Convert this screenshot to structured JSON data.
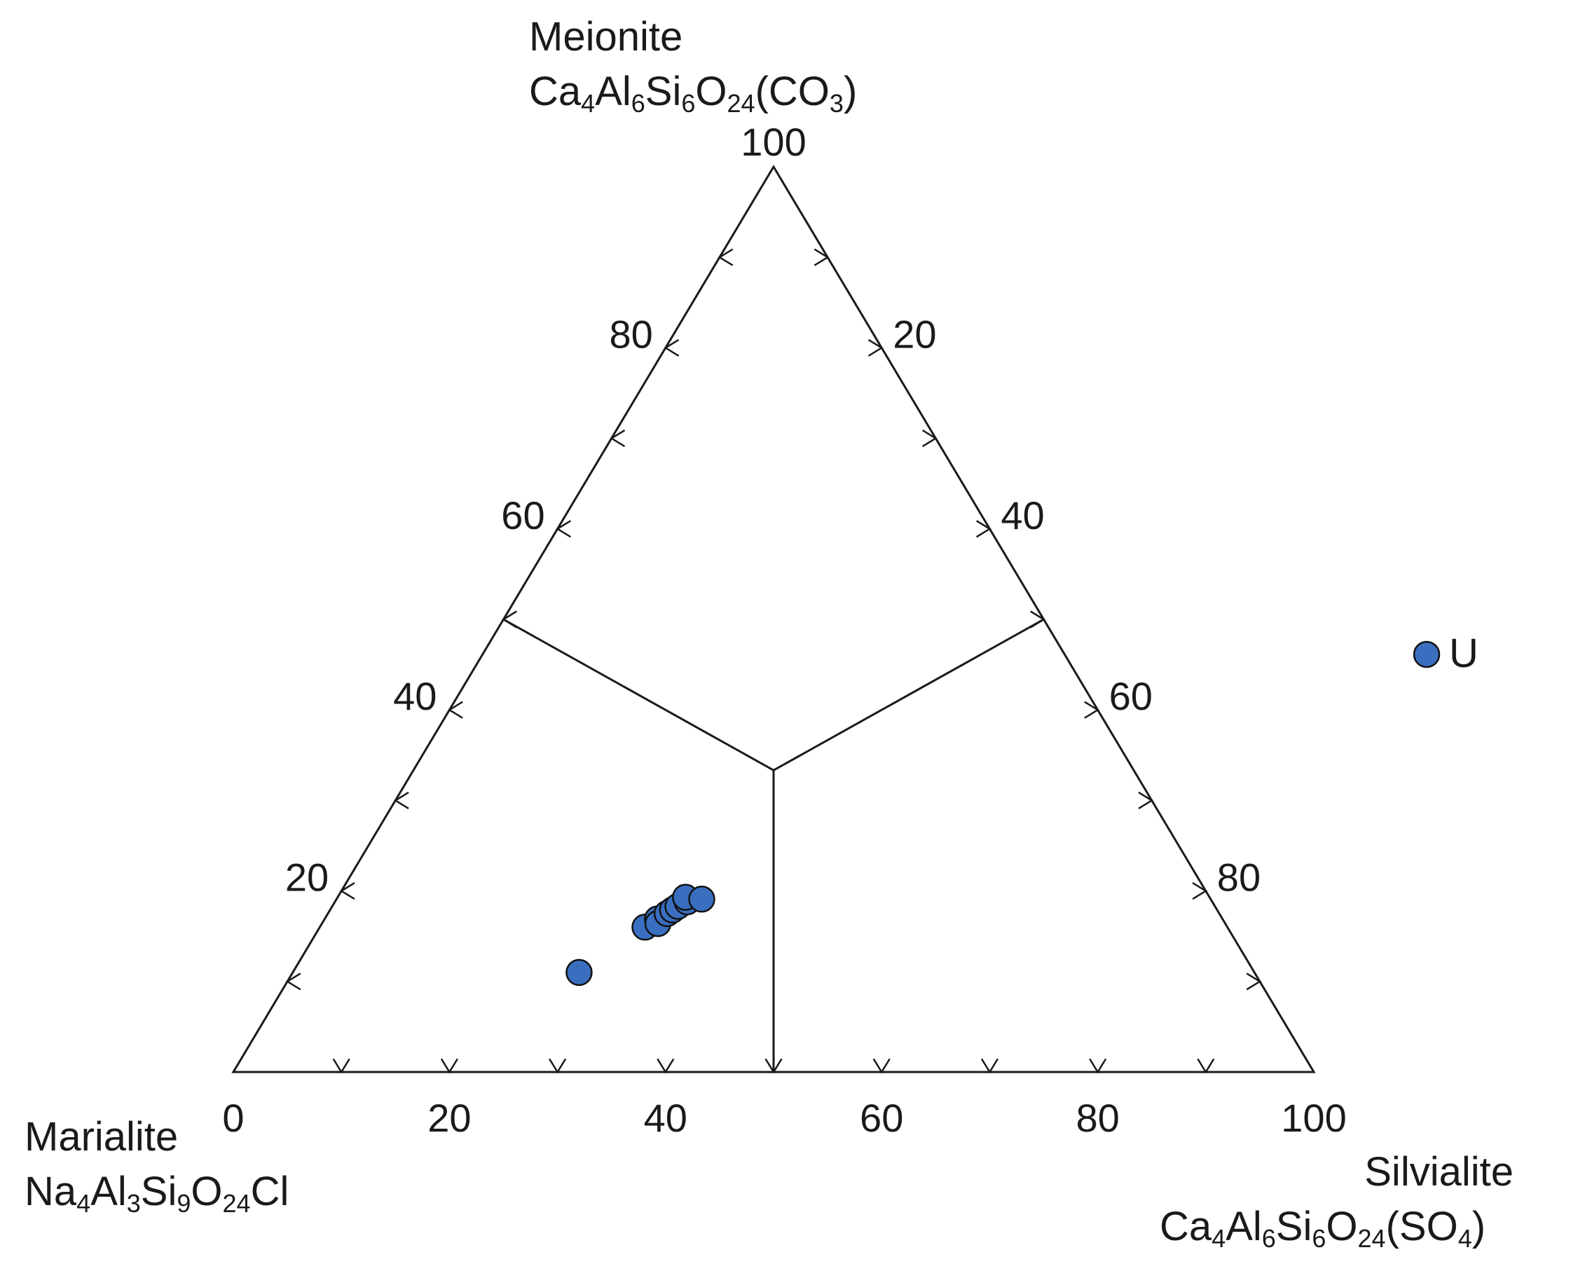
{
  "chart_data": {
    "type": "scatter",
    "subtype": "ternary",
    "vertices": {
      "top": {
        "name": "Meionite",
        "formula": [
          {
            "t": "Ca"
          },
          {
            "t": "4",
            "sub": true
          },
          {
            "t": "Al"
          },
          {
            "t": "6",
            "sub": true
          },
          {
            "t": "Si"
          },
          {
            "t": "6",
            "sub": true
          },
          {
            "t": "O"
          },
          {
            "t": "24",
            "sub": true
          },
          {
            "t": "(CO"
          },
          {
            "t": "3",
            "sub": true
          },
          {
            "t": ")"
          }
        ]
      },
      "left": {
        "name": "Marialite",
        "formula": [
          {
            "t": "Na"
          },
          {
            "t": "4",
            "sub": true
          },
          {
            "t": "Al"
          },
          {
            "t": "3",
            "sub": true
          },
          {
            "t": "Si"
          },
          {
            "t": "9",
            "sub": true
          },
          {
            "t": "O"
          },
          {
            "t": "24",
            "sub": true
          },
          {
            "t": "Cl"
          }
        ]
      },
      "right": {
        "name": "Silvialite",
        "formula": [
          {
            "t": "Ca"
          },
          {
            "t": "4",
            "sub": true
          },
          {
            "t": "Al"
          },
          {
            "t": "6",
            "sub": true
          },
          {
            "t": "Si"
          },
          {
            "t": "6",
            "sub": true
          },
          {
            "t": "O"
          },
          {
            "t": "24",
            "sub": true
          },
          {
            "t": "(SO"
          },
          {
            "t": "4",
            "sub": true
          },
          {
            "t": ")"
          }
        ]
      }
    },
    "axes": {
      "bottom": {
        "ticks": [
          "0",
          "20",
          "40",
          "60",
          "80",
          "100"
        ],
        "values": [
          0,
          20,
          40,
          60,
          80,
          100
        ]
      },
      "left": {
        "ticks": [
          "20",
          "40",
          "60",
          "80",
          "100"
        ],
        "values": [
          20,
          40,
          60,
          80,
          100
        ]
      },
      "right": {
        "ticks": [
          "20",
          "40",
          "60",
          "80"
        ],
        "values": [
          20,
          40,
          60,
          80
        ]
      }
    },
    "minor_step": 10,
    "boundaries": "median lines from the midpoints of the three sides meeting at the centroid",
    "series": [
      {
        "name": "U",
        "color": "#3a6fc0",
        "marker": "circle",
        "points": [
          {
            "x": 26.5,
            "y": 11.0
          },
          {
            "x": 30.1,
            "y": 16.0
          },
          {
            "x": 30.8,
            "y": 16.9
          },
          {
            "x": 31.1,
            "y": 16.4
          },
          {
            "x": 31.4,
            "y": 17.5
          },
          {
            "x": 31.7,
            "y": 17.9
          },
          {
            "x": 32.0,
            "y": 18.3
          },
          {
            "x": 32.6,
            "y": 18.8
          },
          {
            "x": 32.2,
            "y": 19.3
          },
          {
            "x": 33.8,
            "y": 19.1
          }
        ]
      }
    ],
    "legend_position": "right",
    "grid": false
  }
}
